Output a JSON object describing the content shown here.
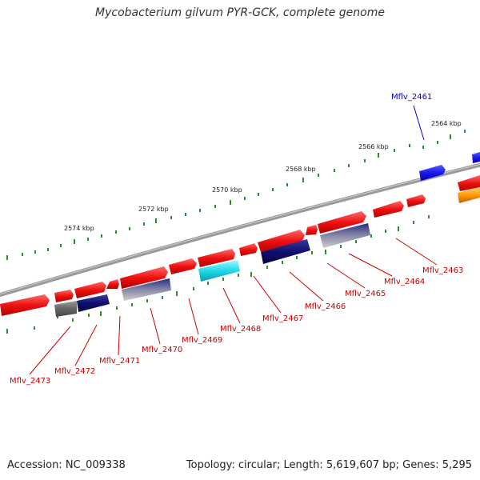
{
  "title": "Mycobacterium gilvum PYR-GCK, complete genome",
  "accession": "Accession: NC_009338",
  "topology": "Topology: circular; Length: 5,619,607 bp; Genes: 5,295",
  "colors": {
    "backbone": "#888888",
    "tick": "#2e8b2e",
    "gene_red": "#ee1111",
    "gene_navy": "#101070",
    "gene_blue": "#1a1aee",
    "gene_cyan": "#22d8e8",
    "gene_orange": "#ff9900",
    "gene_gray": "#666666",
    "label_red": "#cc0000",
    "label_blue": "#0000cc"
  },
  "scale_labels": [
    {
      "text": "2574 kbp"
    },
    {
      "text": "2572 kbp"
    },
    {
      "text": "2570 kbp"
    },
    {
      "text": "2568 kbp"
    },
    {
      "text": "2566 kbp"
    },
    {
      "text": "2564 kbp"
    }
  ],
  "gene_labels": [
    {
      "text": "Mflv_2461",
      "color": "blue"
    },
    {
      "text": "Mflv_2463",
      "color": "red"
    },
    {
      "text": "Mflv_2464",
      "color": "red"
    },
    {
      "text": "Mflv_2465",
      "color": "red"
    },
    {
      "text": "Mflv_2466",
      "color": "red"
    },
    {
      "text": "Mflv_2467",
      "color": "red"
    },
    {
      "text": "Mflv_2468",
      "color": "red"
    },
    {
      "text": "Mflv_2469",
      "color": "red"
    },
    {
      "text": "Mflv_2470",
      "color": "red"
    },
    {
      "text": "Mflv_2471",
      "color": "red"
    },
    {
      "text": "Mflv_2472",
      "color": "red"
    },
    {
      "text": "Mflv_2473",
      "color": "red"
    }
  ]
}
